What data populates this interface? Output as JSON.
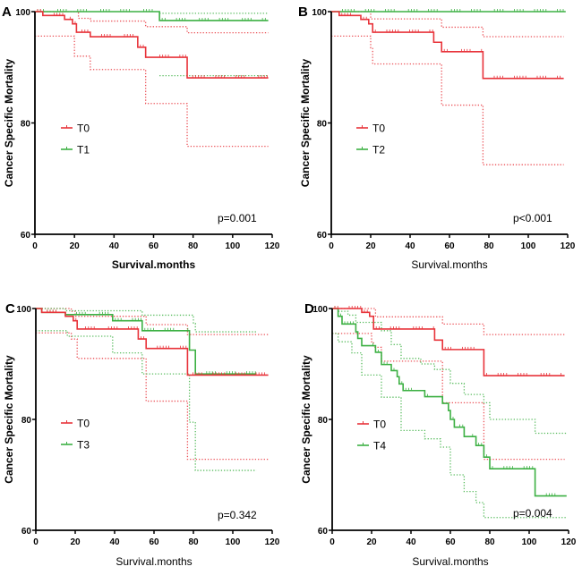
{
  "colors": {
    "T0": "#e8333a",
    "other": "#3cb043",
    "axis": "#000000"
  },
  "chart_data": [
    {
      "type": "line",
      "subtype": "kaplan-meier",
      "panel": "A",
      "xlabel": "Survival.months",
      "ylabel": "Cancer Specific Mortality",
      "xlim": [
        0,
        120
      ],
      "ylim": [
        60,
        100
      ],
      "xticks": [
        "0",
        "20",
        "40",
        "60",
        "80",
        "100",
        "120"
      ],
      "yticks": [
        "60",
        "80",
        "100"
      ],
      "annotation": "p=0.001",
      "legend": [
        "T0",
        "T1"
      ],
      "legend_position": "center-left",
      "series": [
        {
          "name": "T0",
          "color_key": "T0",
          "steps": [
            [
              0,
              100
            ],
            [
              4,
              99.3
            ],
            [
              15,
              98.6
            ],
            [
              19,
              97.8
            ],
            [
              21,
              96.3
            ],
            [
              28,
              95.5
            ],
            [
              52,
              93.6
            ],
            [
              56,
              91.8
            ],
            [
              77,
              88.1
            ],
            [
              118,
              88.1
            ]
          ],
          "ci_upper": [
            [
              0,
              100
            ],
            [
              18,
              100
            ],
            [
              22,
              98.8
            ],
            [
              28,
              98.3
            ],
            [
              52,
              98.3
            ],
            [
              56,
              97.3
            ],
            [
              77,
              96.2
            ],
            [
              118,
              96.2
            ]
          ],
          "ci_lower": [
            [
              0,
              95.6
            ],
            [
              15,
              95.6
            ],
            [
              20,
              92
            ],
            [
              28,
              89.6
            ],
            [
              52,
              89.6
            ],
            [
              56,
              83.5
            ],
            [
              77,
              75.8
            ],
            [
              118,
              75.8
            ]
          ]
        },
        {
          "name": "T1",
          "color_key": "other",
          "steps": [
            [
              0,
              100
            ],
            [
              63,
              98.4
            ],
            [
              118,
              98.4
            ]
          ],
          "ci_upper": [
            [
              63,
              99.7
            ],
            [
              118,
              99.7
            ]
          ],
          "ci_lower": [
            [
              63,
              88.5
            ],
            [
              118,
              88.5
            ]
          ]
        }
      ]
    },
    {
      "type": "line",
      "subtype": "kaplan-meier",
      "panel": "B",
      "xlabel": "Survival.months",
      "ylabel": "Cancer Specific Mortality",
      "xlim": [
        0,
        120
      ],
      "ylim": [
        60,
        100
      ],
      "xticks": [
        "0",
        "20",
        "40",
        "60",
        "80",
        "100",
        "120"
      ],
      "yticks": [
        "60",
        "80",
        "100"
      ],
      "annotation": "p<0.001",
      "legend": [
        "T0",
        "T2"
      ],
      "legend_position": "center-left",
      "series": [
        {
          "name": "T0",
          "color_key": "T0",
          "steps": [
            [
              0,
              100
            ],
            [
              4,
              99.3
            ],
            [
              15,
              98.6
            ],
            [
              19,
              97.8
            ],
            [
              21,
              96.3
            ],
            [
              52,
              94.5
            ],
            [
              56,
              92.8
            ],
            [
              77,
              88
            ],
            [
              118,
              88
            ]
          ],
          "ci_upper": [
            [
              0,
              100
            ],
            [
              18,
              100
            ],
            [
              20,
              98.7
            ],
            [
              52,
              98.7
            ],
            [
              56,
              97.2
            ],
            [
              77,
              95.5
            ],
            [
              118,
              95.5
            ]
          ],
          "ci_lower": [
            [
              0,
              95.6
            ],
            [
              15,
              95.6
            ],
            [
              20,
              93.5
            ],
            [
              21,
              90.6
            ],
            [
              52,
              90.6
            ],
            [
              56,
              83.2
            ],
            [
              77,
              72.5
            ],
            [
              118,
              72.5
            ]
          ]
        },
        {
          "name": "T2",
          "color_key": "other",
          "steps": [
            [
              0,
              100
            ],
            [
              119,
              100
            ]
          ],
          "ci_upper": [],
          "ci_lower": []
        }
      ]
    },
    {
      "type": "line",
      "subtype": "kaplan-meier",
      "panel": "C",
      "xlabel": "Survival.months",
      "ylabel": "Cancer Specific Mortality",
      "xlim": [
        0,
        120
      ],
      "ylim": [
        60,
        100
      ],
      "xticks": [
        "0",
        "20",
        "40",
        "60",
        "80",
        "100",
        "120"
      ],
      "yticks": [
        "60",
        "80",
        "100"
      ],
      "annotation": "p=0.342",
      "legend": [
        "T0",
        "T3"
      ],
      "legend_position": "center-left",
      "series": [
        {
          "name": "T0",
          "color_key": "T0",
          "steps": [
            [
              0,
              100
            ],
            [
              3,
              99.3
            ],
            [
              15,
              98.6
            ],
            [
              19,
              97.8
            ],
            [
              21,
              96.3
            ],
            [
              52,
              94.5
            ],
            [
              56,
              92.8
            ],
            [
              77,
              88
            ],
            [
              118,
              88
            ]
          ],
          "ci_upper": [
            [
              0,
              100
            ],
            [
              18,
              99.5
            ],
            [
              20,
              98.6
            ],
            [
              52,
              98.6
            ],
            [
              56,
              97.1
            ],
            [
              77,
              95.3
            ],
            [
              118,
              95.3
            ]
          ],
          "ci_lower": [
            [
              0,
              95.6
            ],
            [
              15,
              95.6
            ],
            [
              18,
              94.5
            ],
            [
              21,
              91
            ],
            [
              52,
              91
            ],
            [
              56,
              83.3
            ],
            [
              77,
              72.8
            ],
            [
              118,
              72.8
            ]
          ]
        },
        {
          "name": "T3",
          "color_key": "other",
          "steps": [
            [
              0,
              100
            ],
            [
              3,
              99.3
            ],
            [
              15,
              98.9
            ],
            [
              39,
              97.8
            ],
            [
              54,
              96
            ],
            [
              78,
              92.5
            ],
            [
              81,
              88.2
            ],
            [
              112,
              88.2
            ]
          ],
          "ci_upper": [
            [
              0,
              100
            ],
            [
              15,
              99.6
            ],
            [
              39,
              99.6
            ],
            [
              54,
              98.8
            ],
            [
              78,
              98.8
            ],
            [
              80,
              97.3
            ],
            [
              81,
              95.8
            ],
            [
              112,
              95.8
            ]
          ],
          "ci_lower": [
            [
              0,
              96
            ],
            [
              15,
              96
            ],
            [
              16,
              95
            ],
            [
              39,
              95
            ],
            [
              39,
              92
            ],
            [
              54,
              92
            ],
            [
              54,
              88.2
            ],
            [
              78,
              88.2
            ],
            [
              78,
              79.5
            ],
            [
              81,
              79.5
            ],
            [
              81,
              70.8
            ],
            [
              112,
              70.8
            ]
          ]
        }
      ]
    },
    {
      "type": "line",
      "subtype": "kaplan-meier",
      "panel": "D",
      "xlabel": "Survival.months",
      "ylabel": "Cancer Specific Mortality",
      "xlim": [
        0,
        120
      ],
      "ylim": [
        60,
        100
      ],
      "xticks": [
        "0",
        "20",
        "40",
        "60",
        "80",
        "100",
        "120"
      ],
      "yticks": [
        "60",
        "80",
        "100"
      ],
      "annotation": "p=0.004",
      "legend": [
        "T0",
        "T4"
      ],
      "legend_position": "center-left",
      "series": [
        {
          "name": "T0",
          "color_key": "T0",
          "steps": [
            [
              0,
              100
            ],
            [
              15,
              99.3
            ],
            [
              19,
              98.6
            ],
            [
              21,
              96.3
            ],
            [
              52,
              94.3
            ],
            [
              56,
              92.6
            ],
            [
              77,
              87.9
            ],
            [
              118,
              87.9
            ]
          ],
          "ci_upper": [
            [
              0,
              100
            ],
            [
              20,
              100
            ],
            [
              22,
              98.5
            ],
            [
              52,
              98.5
            ],
            [
              56,
              97.2
            ],
            [
              77,
              95.3
            ],
            [
              118,
              95.3
            ]
          ],
          "ci_lower": [
            [
              0,
              95.5
            ],
            [
              15,
              95.5
            ],
            [
              20,
              94
            ],
            [
              21,
              93
            ],
            [
              25,
              90.5
            ],
            [
              52,
              90.5
            ],
            [
              56,
              83
            ],
            [
              77,
              72.8
            ],
            [
              118,
              72.8
            ]
          ]
        },
        {
          "name": "T4",
          "color_key": "other",
          "steps": [
            [
              0,
              100
            ],
            [
              3,
              98.6
            ],
            [
              5,
              97.2
            ],
            [
              12,
              95.8
            ],
            [
              13,
              94.6
            ],
            [
              15,
              93.3
            ],
            [
              22,
              92.1
            ],
            [
              25,
              89.9
            ],
            [
              30,
              88.8
            ],
            [
              33,
              87.7
            ],
            [
              34,
              86.4
            ],
            [
              36,
              85.2
            ],
            [
              47,
              84.1
            ],
            [
              56,
              82.9
            ],
            [
              59,
              81.6
            ],
            [
              60,
              80
            ],
            [
              62,
              78.6
            ],
            [
              67,
              76.9
            ],
            [
              73,
              75.3
            ],
            [
              77,
              73.2
            ],
            [
              80,
              71.1
            ],
            [
              103,
              66.2
            ],
            [
              119,
              66.2
            ]
          ],
          "ci_upper": [
            [
              0,
              100
            ],
            [
              3,
              99.5
            ],
            [
              8,
              98.8
            ],
            [
              12,
              97.5
            ],
            [
              25,
              96
            ],
            [
              30,
              93.5
            ],
            [
              35,
              91
            ],
            [
              45,
              90
            ],
            [
              52,
              89
            ],
            [
              60,
              86.5
            ],
            [
              67,
              84.5
            ],
            [
              77,
              83
            ],
            [
              80,
              80
            ],
            [
              103,
              80
            ],
            [
              103,
              77.5
            ],
            [
              119,
              77.5
            ]
          ],
          "ci_lower": [
            [
              0,
              95.5
            ],
            [
              3,
              94
            ],
            [
              10,
              92
            ],
            [
              15,
              88
            ],
            [
              25,
              84
            ],
            [
              35,
              78
            ],
            [
              47,
              76.5
            ],
            [
              55,
              75
            ],
            [
              60,
              70
            ],
            [
              67,
              67
            ],
            [
              73,
              65
            ],
            [
              77,
              62.3
            ],
            [
              119,
              62.3
            ]
          ]
        }
      ]
    }
  ]
}
